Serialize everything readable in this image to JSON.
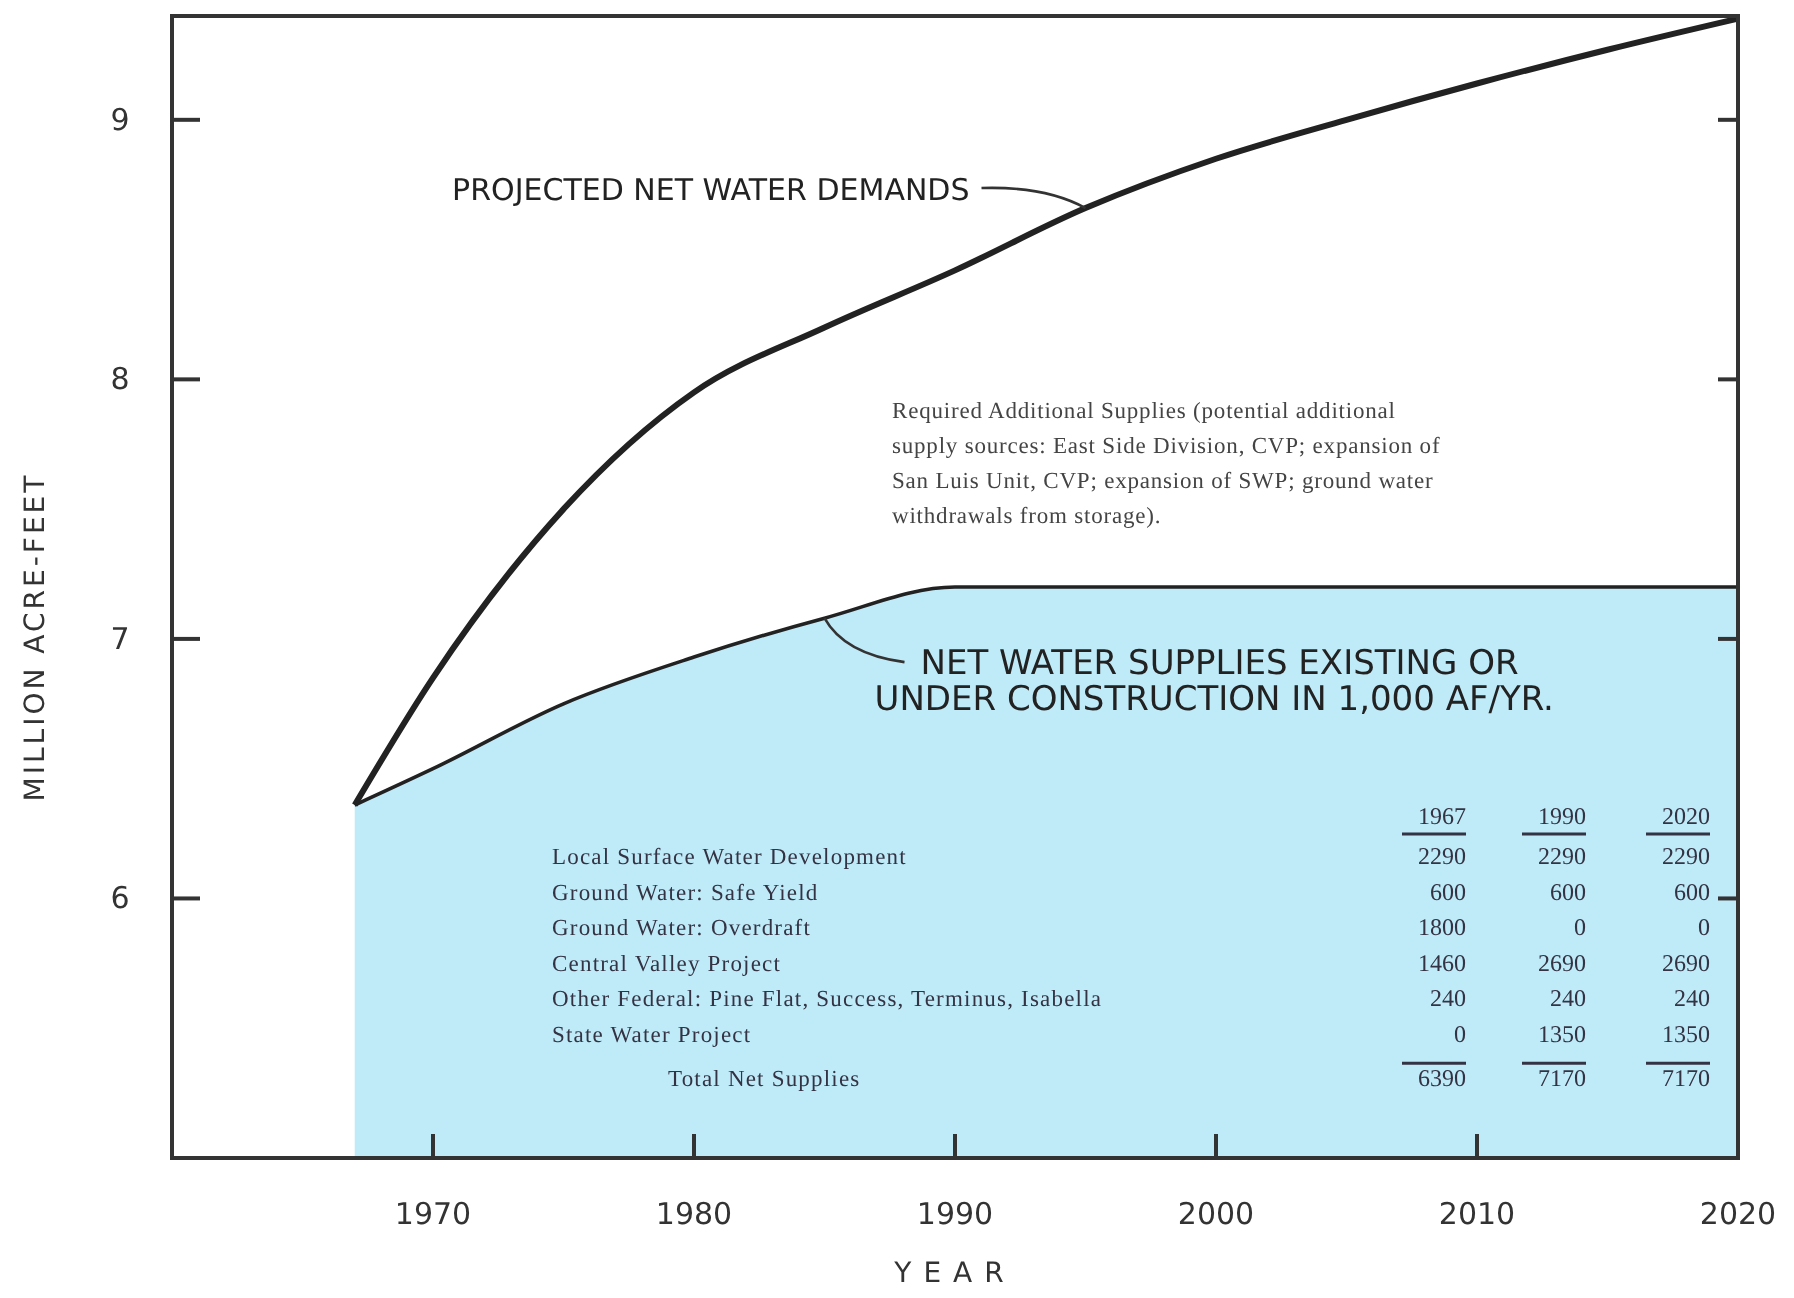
{
  "chart_data": {
    "type": "line",
    "xlabel": "YEAR",
    "ylabel": "MILLION ACRE-FEET",
    "xlim": [
      1960,
      2020
    ],
    "xticks": [
      1970,
      1980,
      1990,
      2000,
      2010,
      2020
    ],
    "ylim": [
      5,
      9.4
    ],
    "yticks": [
      6,
      7,
      8,
      9
    ],
    "grid": false,
    "marker": "none",
    "line_style": "solid",
    "series": [
      {
        "color": "#222222",
        "x": [
          1967,
          1970,
          1975,
          1980,
          1985,
          1990,
          1995,
          2000,
          2005,
          2010,
          2015,
          2020
        ],
        "values": [
          6.36,
          6.85,
          7.5,
          7.95,
          8.2,
          8.42,
          8.66,
          8.85,
          9.0,
          9.14,
          9.27,
          9.39
        ]
      },
      {
        "type": "area",
        "color": "#bfeaf8",
        "x": [
          1967,
          1970,
          1975,
          1980,
          1985,
          1990,
          2020
        ],
        "values": [
          6.36,
          6.5,
          6.75,
          6.93,
          7.08,
          7.2,
          7.2
        ]
      }
    ],
    "annotations": [
      {
        "text": "PROJECTED NET WATER DEMANDS",
        "x": 1995,
        "y": 8.66
      },
      {
        "text": "NET WATER SUPPLIES EXISTING OR UNDER CONSTRUCTION IN 1,000 AF/YR.",
        "x": 1985,
        "y": 7.08
      },
      "Required Additional Supplies (potential additional supply sources: East Side Division, CVP; expansion of San Luis Unit, CVP; expansion of SWP; ground water withdrawals from storage).",
      "1967",
      "1990",
      "2020",
      "Local Surface Water Development",
      "2290",
      "2290",
      "2290",
      "Ground Water: Safe Yield",
      "600",
      "600",
      "600",
      "Ground Water: Overdraft",
      "1800",
      "0",
      "0",
      "Central Valley Project",
      "1460",
      "2690",
      "2690",
      "Other Federal: Pine Flat, Success, Terminus, Isabella",
      "240",
      "240",
      "240",
      "State Water Project",
      "0",
      "1350",
      "1350",
      "Total Net Supplies",
      "6390",
      "7170",
      "7170"
    ]
  }
}
